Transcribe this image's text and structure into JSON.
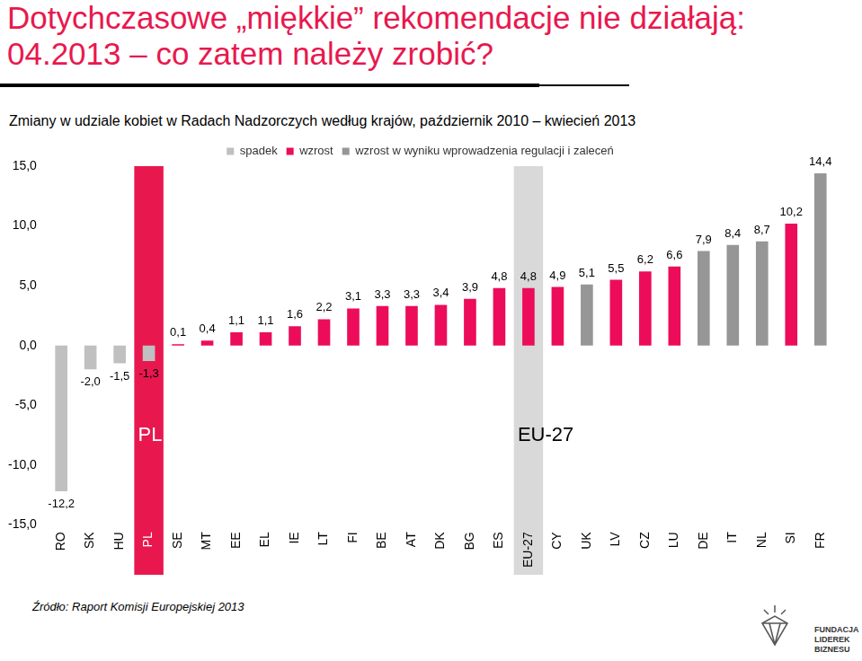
{
  "chart_data": {
    "type": "bar",
    "title": "Dotychczasowe „miękkie” rekomendacje nie działają: 04.2013 – co zatem należy zrobić?",
    "subtitle": "Zmiany w udziale kobiet w Radach Nadzorczych według krajów, październik 2010 – kwiecień 2013",
    "source": "Źródło: Raport Komisji Europejskiej 2013",
    "logo": [
      "FUNDACJA",
      "LIDEREK",
      "BIZNESU"
    ],
    "categories": [
      "RO",
      "SK",
      "HU",
      "PL",
      "SE",
      "MT",
      "EE",
      "EL",
      "IE",
      "LT",
      "FI",
      "BE",
      "AT",
      "DK",
      "BG",
      "ES",
      "EU-27",
      "CY",
      "UK",
      "LV",
      "CZ",
      "LU",
      "DE",
      "IT",
      "NL",
      "SI",
      "FR"
    ],
    "series": [
      {
        "name": "spadek",
        "color": "#c0c0c0",
        "values": [
          -12.2,
          -2.0,
          -1.5,
          -1.3,
          null,
          null,
          null,
          null,
          null,
          null,
          null,
          null,
          null,
          null,
          null,
          null,
          null,
          null,
          null,
          null,
          null,
          null,
          null,
          null,
          null,
          null,
          null
        ],
        "value_labels": [
          "-12,2",
          "-2,0",
          "-1,5",
          "-1,3",
          null,
          null,
          null,
          null,
          null,
          null,
          null,
          null,
          null,
          null,
          null,
          null,
          null,
          null,
          null,
          null,
          null,
          null,
          null,
          null,
          null,
          null,
          null
        ]
      },
      {
        "name": "wzrost",
        "color": "#ec0c5a",
        "values": [
          null,
          null,
          null,
          null,
          0.1,
          0.4,
          1.1,
          1.1,
          1.6,
          2.2,
          3.1,
          3.3,
          3.3,
          3.4,
          3.9,
          4.8,
          4.8,
          4.9,
          null,
          5.5,
          6.2,
          6.6,
          null,
          null,
          null,
          10.2,
          null
        ],
        "value_labels": [
          null,
          null,
          null,
          null,
          "0,1",
          "0,4",
          "1,1",
          "1,1",
          "1,6",
          "2,2",
          "3,1",
          "3,3",
          "3,3",
          "3,4",
          "3,9",
          "4,8",
          "4,8",
          "4,9",
          null,
          "5,5",
          "6,2",
          "6,6",
          null,
          null,
          null,
          "10,2",
          null
        ]
      },
      {
        "name": "wzrost w wyniku wprowadzenia regulacji i zaleceń",
        "color": "#969696",
        "values": [
          null,
          null,
          null,
          null,
          null,
          null,
          null,
          null,
          null,
          null,
          null,
          null,
          null,
          null,
          null,
          null,
          null,
          null,
          5.1,
          null,
          null,
          null,
          7.9,
          8.4,
          8.7,
          null,
          14.4
        ],
        "value_labels": [
          null,
          null,
          null,
          null,
          null,
          null,
          null,
          null,
          null,
          null,
          null,
          null,
          null,
          null,
          null,
          null,
          null,
          null,
          "5,1",
          null,
          null,
          null,
          "7,9",
          "8,4",
          "8,7",
          null,
          "14,4"
        ]
      }
    ],
    "annotations": [
      {
        "category": "PL",
        "text": "PL",
        "color": "#e8184f",
        "y": -7.5
      },
      {
        "category": "EU-27",
        "text": "EU-27",
        "color": "#d9d9d9",
        "y": -7.5
      }
    ],
    "ylim": [
      -15,
      15
    ],
    "yticks": [
      {
        "value": -15,
        "label": "-15,0"
      },
      {
        "value": -10,
        "label": "-10,0"
      },
      {
        "value": -5,
        "label": "-5,0"
      },
      {
        "value": 0,
        "label": "0,0"
      },
      {
        "value": 5,
        "label": "5,0"
      },
      {
        "value": 10,
        "label": "10,0"
      },
      {
        "value": 15,
        "label": "15,0"
      }
    ],
    "stacked": true,
    "grid": false,
    "legend": "top",
    "data_labels": true
  }
}
